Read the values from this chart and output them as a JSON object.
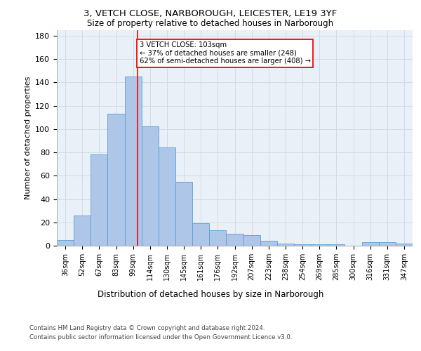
{
  "title_line1": "3, VETCH CLOSE, NARBOROUGH, LEICESTER, LE19 3YF",
  "title_line2": "Size of property relative to detached houses in Narborough",
  "xlabel": "Distribution of detached houses by size in Narborough",
  "ylabel": "Number of detached properties",
  "categories": [
    "36sqm",
    "52sqm",
    "67sqm",
    "83sqm",
    "99sqm",
    "114sqm",
    "130sqm",
    "145sqm",
    "161sqm",
    "176sqm",
    "192sqm",
    "207sqm",
    "223sqm",
    "238sqm",
    "254sqm",
    "269sqm",
    "285sqm",
    "300sqm",
    "316sqm",
    "331sqm",
    "347sqm"
  ],
  "values": [
    5,
    26,
    78,
    113,
    145,
    102,
    84,
    55,
    19,
    13,
    10,
    9,
    4,
    2,
    1,
    1,
    1,
    0,
    3,
    3,
    2
  ],
  "bar_color": "#aec6e8",
  "bar_edge_color": "#5a9fd4",
  "grid_color": "#d0dce8",
  "background_color": "#eaf0f8",
  "vline_color": "red",
  "annotation_text": "3 VETCH CLOSE: 103sqm\n← 37% of detached houses are smaller (248)\n62% of semi-detached houses are larger (408) →",
  "annotation_box_color": "white",
  "annotation_box_edgecolor": "red",
  "ylim": [
    0,
    185
  ],
  "yticks": [
    0,
    20,
    40,
    60,
    80,
    100,
    120,
    140,
    160,
    180
  ],
  "footer_line1": "Contains HM Land Registry data © Crown copyright and database right 2024.",
  "footer_line2": "Contains public sector information licensed under the Open Government Licence v3.0."
}
